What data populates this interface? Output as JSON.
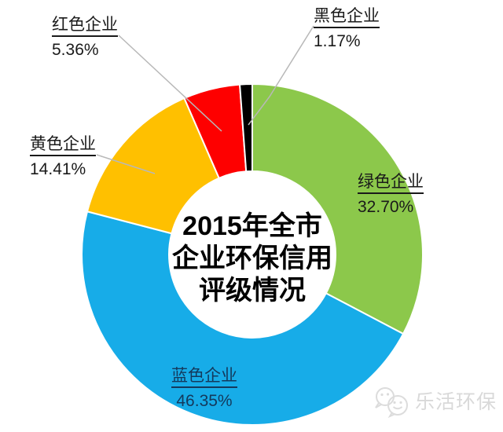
{
  "center_title": {
    "line1": "2015年全市",
    "line2": "企业环保信用",
    "line3": "评级情况"
  },
  "watermark": {
    "text": "乐活环保",
    "icon": "wechat-icon",
    "color": "#d9d9d9"
  },
  "chart_data": {
    "type": "pie",
    "subtype": "donut",
    "title": "2015年全市企业环保信用评级情况",
    "hole_ratio": 0.49,
    "start_angle_deg": 0,
    "direction": "clockwise",
    "legend_position": "none",
    "leader_line_color": "#b8b8b8",
    "slice_border_color": "#ffffff",
    "slices": [
      {
        "key": "green",
        "label": "绿色企业",
        "value": 32.7,
        "display": "32.70%",
        "color": "#8cc84b"
      },
      {
        "key": "blue",
        "label": "蓝色企业",
        "value": 46.35,
        "display": "46.35%",
        "color": "#17ace8"
      },
      {
        "key": "yellow",
        "label": "黄色企业",
        "value": 14.41,
        "display": "14.41%",
        "color": "#ffc000"
      },
      {
        "key": "red",
        "label": "红色企业",
        "value": 5.36,
        "display": "5.36%",
        "color": "#fe0000"
      },
      {
        "key": "black",
        "label": "黑色企业",
        "value": 1.17,
        "display": "1.17%",
        "color": "#000000"
      }
    ]
  }
}
